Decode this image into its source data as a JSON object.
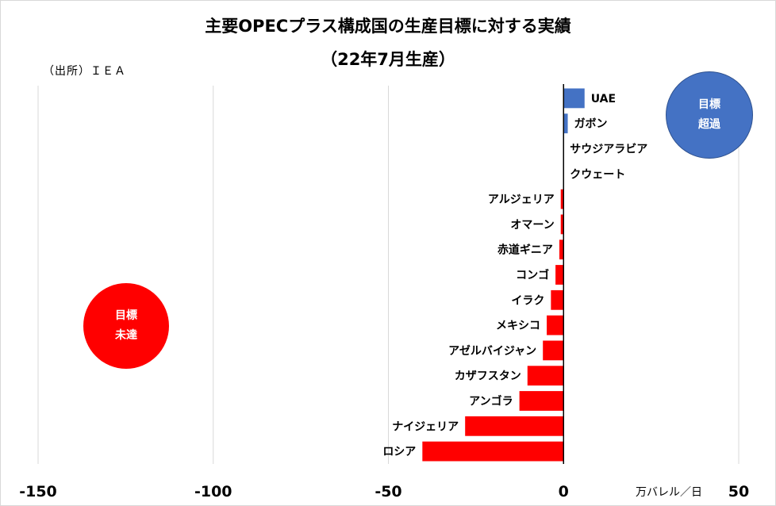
{
  "title": "主要OPECプラス構成国の生産目標に対する実績",
  "subtitle": "（22年7月生産）",
  "source": "（出所）ＩＥＡ",
  "unit_label": "万バレル／日",
  "callouts": {
    "over": {
      "line1": "目標",
      "line2": "超過",
      "color": "#4472c4"
    },
    "under": {
      "line1": "目標",
      "line2": "未達",
      "color": "#ff0000"
    }
  },
  "colors": {
    "positive": "#4472c4",
    "negative": "#ff0000",
    "grid": "#d9d9d9",
    "axis": "#000000"
  },
  "chart_data": {
    "type": "bar",
    "orientation": "horizontal",
    "categories": [
      "UAE",
      "ガボン",
      "サウジアラビア",
      "クウェート",
      "アルジェリア",
      "オマーン",
      "赤道ギニア",
      "コンゴ",
      "イラク",
      "メキシコ",
      "アゼルバイジャン",
      "カザフスタン",
      "アンゴラ",
      "ナイジェリア",
      "ロシア"
    ],
    "values": [
      6,
      1.2,
      0,
      0,
      -0.8,
      -0.8,
      -1.2,
      -2.3,
      -3.6,
      -4.8,
      -5.9,
      -10.3,
      -12.6,
      -28.1,
      -40.3
    ],
    "xlim": [
      -150,
      50
    ],
    "xticks": [
      -150,
      -100,
      -50,
      0,
      50
    ],
    "grid": true
  }
}
